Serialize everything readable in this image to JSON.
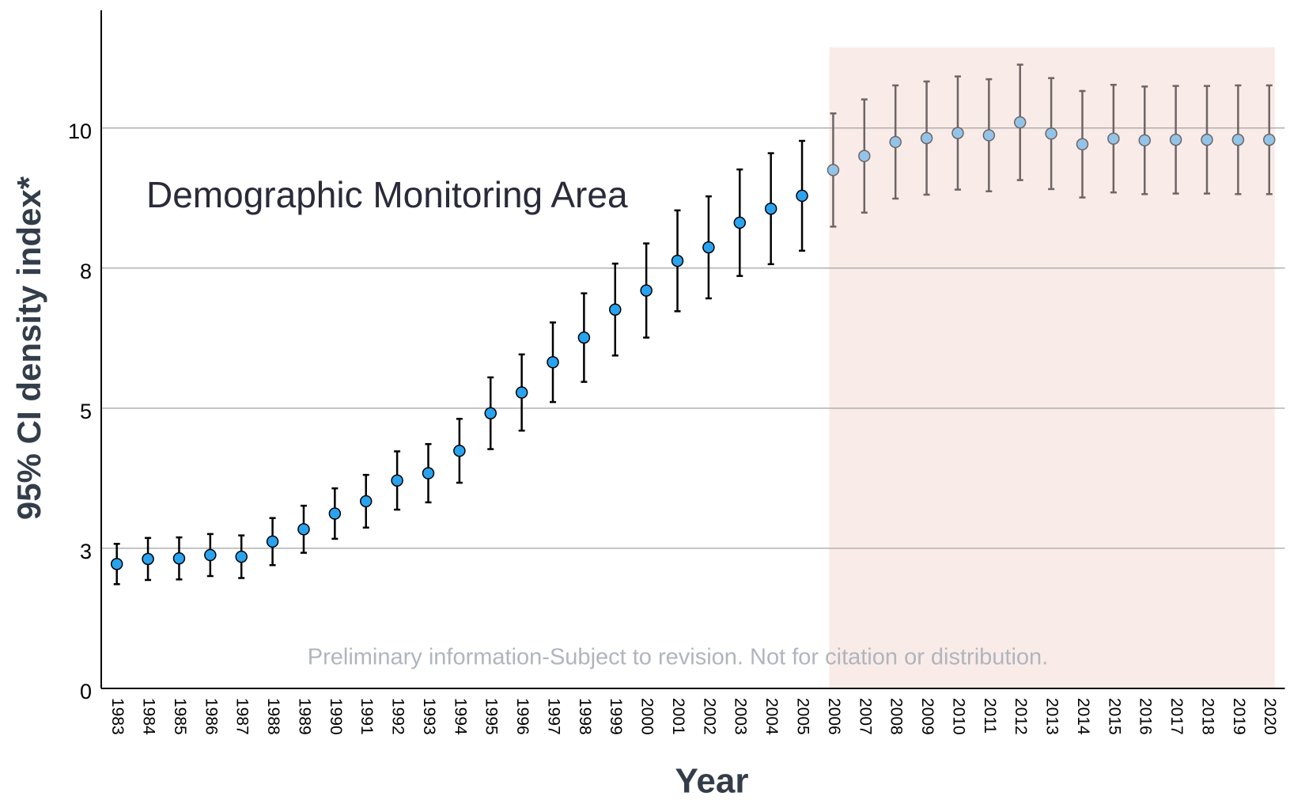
{
  "chart_data": {
    "type": "errorbar",
    "ylabel": "95% CI density index*",
    "xlabel": "Year",
    "annotation": "Demographic Monitoring Area",
    "watermark": "Preliminary information-Subject to revision. Not for citation or distribution.",
    "categories": [
      "1983",
      "1984",
      "1985",
      "1986",
      "1987",
      "1988",
      "1989",
      "1990",
      "1991",
      "1992",
      "1993",
      "1994",
      "1995",
      "1996",
      "1997",
      "1998",
      "1999",
      "2000",
      "2001",
      "2002",
      "2003",
      "2004",
      "2005",
      "2006",
      "2007",
      "2008",
      "2009",
      "2010",
      "2011",
      "2012",
      "2013",
      "2014",
      "2015",
      "2016",
      "2017",
      "2018",
      "2019",
      "2020"
    ],
    "values": [
      2.22,
      2.31,
      2.32,
      2.38,
      2.35,
      2.62,
      2.84,
      3.12,
      3.34,
      3.71,
      3.84,
      4.24,
      4.91,
      5.28,
      5.82,
      6.26,
      6.76,
      7.1,
      7.63,
      7.87,
      8.31,
      8.56,
      8.79,
      9.25,
      9.5,
      9.75,
      9.82,
      9.91,
      9.87,
      10.1,
      9.9,
      9.71,
      9.81,
      9.78,
      9.79,
      9.79,
      9.79,
      9.79
    ],
    "errors": [
      0.36,
      0.375,
      0.375,
      0.375,
      0.38,
      0.42,
      0.42,
      0.45,
      0.47,
      0.52,
      0.52,
      0.57,
      0.64,
      0.68,
      0.71,
      0.79,
      0.82,
      0.84,
      0.9,
      0.91,
      0.95,
      0.99,
      0.98,
      1.01,
      1.01,
      1.01,
      1.01,
      1.01,
      1.0,
      1.03,
      0.99,
      0.95,
      0.96,
      0.96,
      0.96,
      0.96,
      0.97,
      0.97
    ],
    "color": "#29a3f0",
    "error_color": "#000000",
    "highlight": {
      "from": "2006",
      "to": "2020",
      "color": "#f9ebe8",
      "marker_color": "#93c4e8",
      "error_color": "#6e6566"
    },
    "ylim": [
      0,
      12.1
    ],
    "yticks": [
      0,
      {
        "value": 2.5,
        "label": "3"
      },
      5,
      {
        "value": 7.5,
        "label": "8"
      },
      10
    ],
    "grid": true
  }
}
